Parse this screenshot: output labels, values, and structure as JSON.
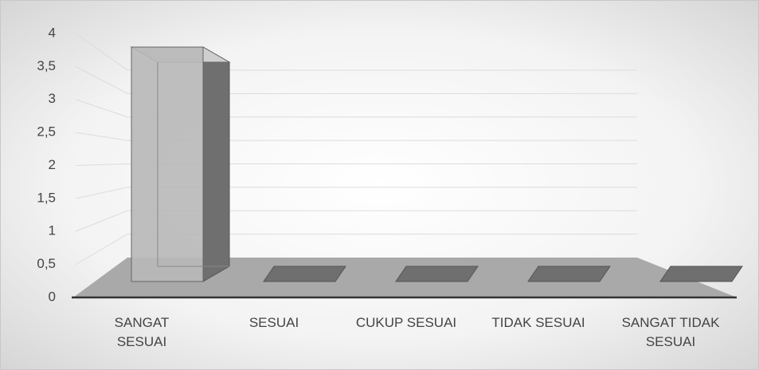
{
  "chart_data": {
    "type": "bar3d",
    "categories": [
      "SANGAT SESUAI",
      "SESUAI",
      "CUKUP SESUAI",
      "TIDAK SESUAI",
      "SANGAT TIDAK SESUAI"
    ],
    "values": [
      4,
      0,
      0,
      0,
      0
    ],
    "color": "#b8b8b8",
    "ylim": [
      0,
      4
    ],
    "yticks": [
      0,
      {
        "value": 0.5,
        "label": "0,5"
      },
      1,
      {
        "value": 1.5,
        "label": "1,5"
      },
      2,
      {
        "value": 2.5,
        "label": "2,5"
      },
      3,
      {
        "value": 3.5,
        "label": "3,5"
      },
      4
    ],
    "grid": true
  }
}
